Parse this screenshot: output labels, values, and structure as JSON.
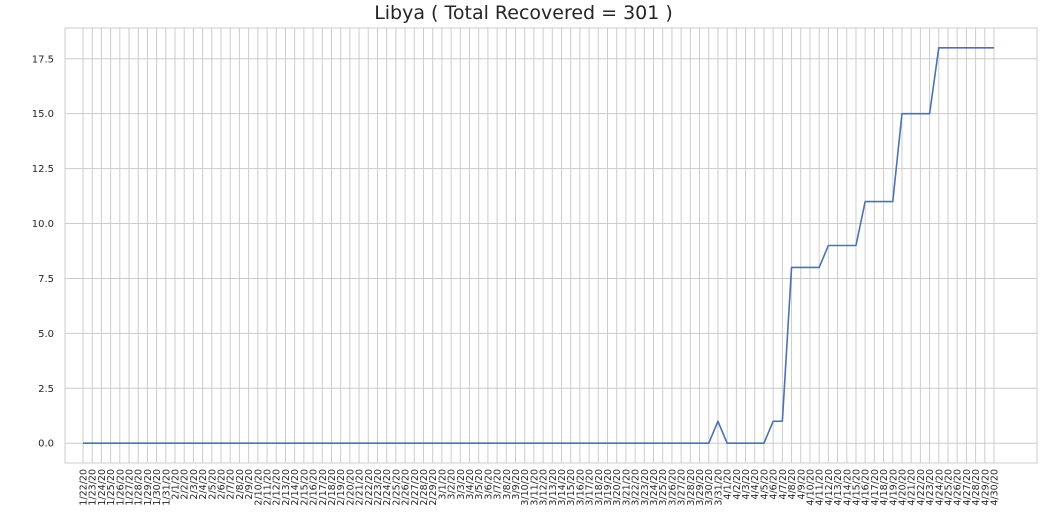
{
  "chart_data": {
    "type": "line",
    "title": "Libya ( Total Recovered = 301 )",
    "xlabel": "",
    "ylabel": "",
    "ylim": [
      -0.9,
      18.9
    ],
    "grid": true,
    "line_color": "#4c72b0",
    "grid_color": "#cccccc",
    "yticks": [
      0.0,
      2.5,
      5.0,
      7.5,
      10.0,
      12.5,
      15.0,
      17.5
    ],
    "ytick_labels": [
      "0.0",
      "2.5",
      "5.0",
      "7.5",
      "10.0",
      "12.5",
      "15.0",
      "17.5"
    ],
    "x": [
      "1/22/20",
      "1/23/20",
      "1/24/20",
      "1/25/20",
      "1/26/20",
      "1/27/20",
      "1/28/20",
      "1/29/20",
      "1/30/20",
      "1/31/20",
      "2/1/20",
      "2/2/20",
      "2/3/20",
      "2/4/20",
      "2/5/20",
      "2/6/20",
      "2/7/20",
      "2/8/20",
      "2/9/20",
      "2/10/20",
      "2/11/20",
      "2/12/20",
      "2/13/20",
      "2/14/20",
      "2/15/20",
      "2/16/20",
      "2/17/20",
      "2/18/20",
      "2/19/20",
      "2/20/20",
      "2/21/20",
      "2/22/20",
      "2/23/20",
      "2/24/20",
      "2/25/20",
      "2/26/20",
      "2/27/20",
      "2/28/20",
      "2/29/20",
      "3/1/20",
      "3/2/20",
      "3/3/20",
      "3/4/20",
      "3/5/20",
      "3/6/20",
      "3/7/20",
      "3/8/20",
      "3/9/20",
      "3/10/20",
      "3/11/20",
      "3/12/20",
      "3/13/20",
      "3/14/20",
      "3/15/20",
      "3/16/20",
      "3/17/20",
      "3/18/20",
      "3/19/20",
      "3/20/20",
      "3/21/20",
      "3/22/20",
      "3/23/20",
      "3/24/20",
      "3/25/20",
      "3/26/20",
      "3/27/20",
      "3/28/20",
      "3/29/20",
      "3/30/20",
      "3/31/20",
      "4/1/20",
      "4/2/20",
      "4/3/20",
      "4/4/20",
      "4/5/20",
      "4/6/20",
      "4/7/20",
      "4/8/20",
      "4/9/20",
      "4/10/20",
      "4/11/20",
      "4/12/20",
      "4/13/20",
      "4/14/20",
      "4/15/20",
      "4/16/20",
      "4/17/20",
      "4/18/20",
      "4/19/20",
      "4/20/20",
      "4/21/20",
      "4/22/20",
      "4/23/20",
      "4/24/20",
      "4/25/20",
      "4/26/20",
      "4/27/20",
      "4/28/20",
      "4/29/20",
      "4/30/20"
    ],
    "values": [
      0,
      0,
      0,
      0,
      0,
      0,
      0,
      0,
      0,
      0,
      0,
      0,
      0,
      0,
      0,
      0,
      0,
      0,
      0,
      0,
      0,
      0,
      0,
      0,
      0,
      0,
      0,
      0,
      0,
      0,
      0,
      0,
      0,
      0,
      0,
      0,
      0,
      0,
      0,
      0,
      0,
      0,
      0,
      0,
      0,
      0,
      0,
      0,
      0,
      0,
      0,
      0,
      0,
      0,
      0,
      0,
      0,
      0,
      0,
      0,
      0,
      0,
      0,
      0,
      0,
      0,
      0,
      0,
      0,
      1,
      0,
      0,
      0,
      0,
      0,
      1,
      1,
      8,
      8,
      8,
      8,
      9,
      9,
      9,
      9,
      11,
      11,
      11,
      11,
      15,
      15,
      15,
      15,
      18,
      18,
      18,
      18,
      18,
      18,
      18
    ]
  }
}
